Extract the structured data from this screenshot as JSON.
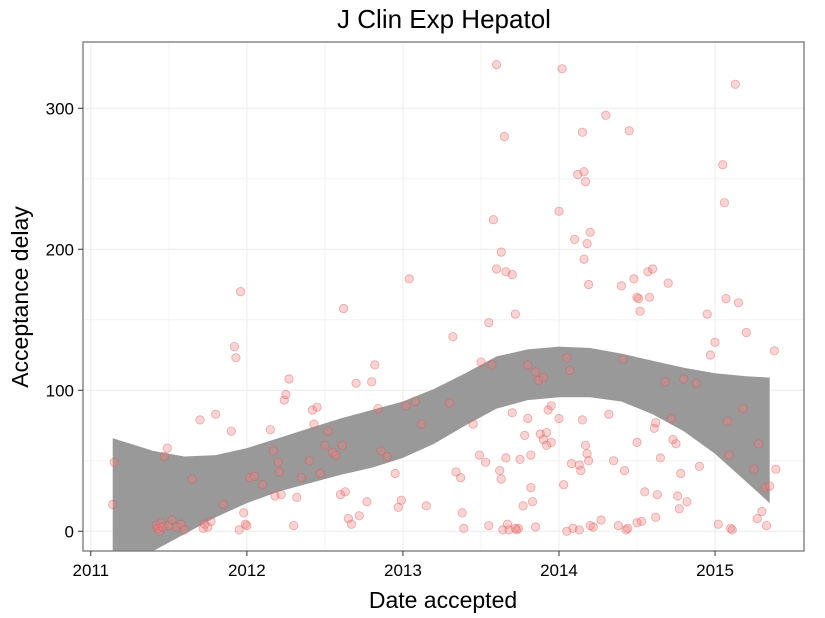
{
  "chart_data": {
    "type": "scatter",
    "title": "J Clin Exp Hepatol",
    "xlabel": "Date accepted",
    "ylabel": "Acceptance delay",
    "xlim": [
      2010.95,
      2015.57
    ],
    "ylim": [
      -14,
      347
    ],
    "x_ticks": [
      2011,
      2012,
      2013,
      2014,
      2015
    ],
    "x_tick_labels": [
      "2011",
      "2012",
      "2013",
      "2014",
      "2015"
    ],
    "y_ticks": [
      0,
      100,
      200,
      300
    ],
    "y_tick_labels": [
      "0",
      "100",
      "200",
      "300"
    ],
    "grid": true,
    "point_color": "#f08080",
    "band_color": "#999999",
    "smooth_band": {
      "x": [
        2011.14,
        2011.4,
        2011.6,
        2011.8,
        2012.0,
        2012.2,
        2012.4,
        2012.6,
        2012.8,
        2013.0,
        2013.2,
        2013.4,
        2013.6,
        2013.8,
        2014.0,
        2014.2,
        2014.4,
        2014.6,
        2014.8,
        2015.0,
        2015.2,
        2015.35
      ],
      "upper": [
        66,
        57,
        53,
        54,
        59,
        66,
        73,
        80,
        86,
        92,
        101,
        112,
        124,
        129,
        131,
        130,
        126,
        121,
        116,
        112,
        110,
        109
      ],
      "lower": [
        -14,
        -14,
        -2,
        10,
        20,
        28,
        34,
        40,
        45,
        52,
        62,
        75,
        87,
        93,
        95,
        95,
        92,
        83,
        71,
        55,
        35,
        20
      ]
    },
    "points": [
      {
        "x": 2011.14,
        "y": 19
      },
      {
        "x": 2011.15,
        "y": 49
      },
      {
        "x": 2011.42,
        "y": 4
      },
      {
        "x": 2011.43,
        "y": 2
      },
      {
        "x": 2011.44,
        "y": 0
      },
      {
        "x": 2011.45,
        "y": 6
      },
      {
        "x": 2011.46,
        "y": 3
      },
      {
        "x": 2011.47,
        "y": 53
      },
      {
        "x": 2011.49,
        "y": 59
      },
      {
        "x": 2011.5,
        "y": 4
      },
      {
        "x": 2011.52,
        "y": 8
      },
      {
        "x": 2011.55,
        "y": 3
      },
      {
        "x": 2011.58,
        "y": 5
      },
      {
        "x": 2011.6,
        "y": 1
      },
      {
        "x": 2011.65,
        "y": 37
      },
      {
        "x": 2011.7,
        "y": 79
      },
      {
        "x": 2011.72,
        "y": 2
      },
      {
        "x": 2011.73,
        "y": 5
      },
      {
        "x": 2011.75,
        "y": 3
      },
      {
        "x": 2011.77,
        "y": 7
      },
      {
        "x": 2011.8,
        "y": 83
      },
      {
        "x": 2011.85,
        "y": 19
      },
      {
        "x": 2011.9,
        "y": 71
      },
      {
        "x": 2011.92,
        "y": 131
      },
      {
        "x": 2011.93,
        "y": 123
      },
      {
        "x": 2011.95,
        "y": 1
      },
      {
        "x": 2011.96,
        "y": 170
      },
      {
        "x": 2011.98,
        "y": 13
      },
      {
        "x": 2011.99,
        "y": 5
      },
      {
        "x": 2012.0,
        "y": 4
      },
      {
        "x": 2012.02,
        "y": 38
      },
      {
        "x": 2012.05,
        "y": 39
      },
      {
        "x": 2012.1,
        "y": 33
      },
      {
        "x": 2012.15,
        "y": 72
      },
      {
        "x": 2012.17,
        "y": 57
      },
      {
        "x": 2012.18,
        "y": 25
      },
      {
        "x": 2012.2,
        "y": 49
      },
      {
        "x": 2012.21,
        "y": 42
      },
      {
        "x": 2012.22,
        "y": 26
      },
      {
        "x": 2012.24,
        "y": 93
      },
      {
        "x": 2012.25,
        "y": 97
      },
      {
        "x": 2012.27,
        "y": 108
      },
      {
        "x": 2012.3,
        "y": 4
      },
      {
        "x": 2012.32,
        "y": 24
      },
      {
        "x": 2012.35,
        "y": 38
      },
      {
        "x": 2012.4,
        "y": 50
      },
      {
        "x": 2012.42,
        "y": 86
      },
      {
        "x": 2012.43,
        "y": 76
      },
      {
        "x": 2012.45,
        "y": 88
      },
      {
        "x": 2012.47,
        "y": 41
      },
      {
        "x": 2012.5,
        "y": 61
      },
      {
        "x": 2012.52,
        "y": 71
      },
      {
        "x": 2012.55,
        "y": 56
      },
      {
        "x": 2012.57,
        "y": 54
      },
      {
        "x": 2012.6,
        "y": 26
      },
      {
        "x": 2012.61,
        "y": 61
      },
      {
        "x": 2012.62,
        "y": 158
      },
      {
        "x": 2012.63,
        "y": 28
      },
      {
        "x": 2012.65,
        "y": 9
      },
      {
        "x": 2012.67,
        "y": 5
      },
      {
        "x": 2012.7,
        "y": 105
      },
      {
        "x": 2012.72,
        "y": 11
      },
      {
        "x": 2012.77,
        "y": 21
      },
      {
        "x": 2012.8,
        "y": 106
      },
      {
        "x": 2012.82,
        "y": 118
      },
      {
        "x": 2012.84,
        "y": 87
      },
      {
        "x": 2012.86,
        "y": 57
      },
      {
        "x": 2012.9,
        "y": 53
      },
      {
        "x": 2012.95,
        "y": 41
      },
      {
        "x": 2012.97,
        "y": 17
      },
      {
        "x": 2012.99,
        "y": 22
      },
      {
        "x": 2013.02,
        "y": 89
      },
      {
        "x": 2013.04,
        "y": 179
      },
      {
        "x": 2013.08,
        "y": 92
      },
      {
        "x": 2013.12,
        "y": 76
      },
      {
        "x": 2013.15,
        "y": 18
      },
      {
        "x": 2013.3,
        "y": 91
      },
      {
        "x": 2013.32,
        "y": 138
      },
      {
        "x": 2013.34,
        "y": 42
      },
      {
        "x": 2013.37,
        "y": 38
      },
      {
        "x": 2013.38,
        "y": 13
      },
      {
        "x": 2013.39,
        "y": 2
      },
      {
        "x": 2013.45,
        "y": 76
      },
      {
        "x": 2013.5,
        "y": 120
      },
      {
        "x": 2013.55,
        "y": 4
      },
      {
        "x": 2013.6,
        "y": 186
      },
      {
        "x": 2013.63,
        "y": 37
      },
      {
        "x": 2013.66,
        "y": 52
      },
      {
        "x": 2013.7,
        "y": 182
      },
      {
        "x": 2013.72,
        "y": 154
      },
      {
        "x": 2013.73,
        "y": 1
      },
      {
        "x": 2013.74,
        "y": 2
      },
      {
        "x": 2013.75,
        "y": 51
      },
      {
        "x": 2013.77,
        "y": 18
      },
      {
        "x": 2013.78,
        "y": 68
      },
      {
        "x": 2013.8,
        "y": 80
      },
      {
        "x": 2013.82,
        "y": 54
      },
      {
        "x": 2013.85,
        "y": 113
      },
      {
        "x": 2013.87,
        "y": 107
      },
      {
        "x": 2013.88,
        "y": 69
      },
      {
        "x": 2013.9,
        "y": 109
      },
      {
        "x": 2013.92,
        "y": 70
      },
      {
        "x": 2013.93,
        "y": 86
      },
      {
        "x": 2013.95,
        "y": 63
      },
      {
        "x": 2013.58,
        "y": 221
      },
      {
        "x": 2013.6,
        "y": 331
      },
      {
        "x": 2013.63,
        "y": 198
      },
      {
        "x": 2013.65,
        "y": 280
      },
      {
        "x": 2013.66,
        "y": 184
      },
      {
        "x": 2013.67,
        "y": 5
      },
      {
        "x": 2013.7,
        "y": 84
      },
      {
        "x": 2013.72,
        "y": 2
      },
      {
        "x": 2013.62,
        "y": 43
      },
      {
        "x": 2013.64,
        "y": 1
      },
      {
        "x": 2013.68,
        "y": 1
      },
      {
        "x": 2013.55,
        "y": 148
      },
      {
        "x": 2013.57,
        "y": 118
      },
      {
        "x": 2013.53,
        "y": 49
      },
      {
        "x": 2013.49,
        "y": 54
      },
      {
        "x": 2013.8,
        "y": 118
      },
      {
        "x": 2013.82,
        "y": 31
      },
      {
        "x": 2013.83,
        "y": 21
      },
      {
        "x": 2013.85,
        "y": 3
      },
      {
        "x": 2013.9,
        "y": 65
      },
      {
        "x": 2013.92,
        "y": 61
      },
      {
        "x": 2013.95,
        "y": 89
      },
      {
        "x": 2014.0,
        "y": 227
      },
      {
        "x": 2014.02,
        "y": 328
      },
      {
        "x": 2014.0,
        "y": 80
      },
      {
        "x": 2014.03,
        "y": 33
      },
      {
        "x": 2014.05,
        "y": 123
      },
      {
        "x": 2014.07,
        "y": 114
      },
      {
        "x": 2014.08,
        "y": 48
      },
      {
        "x": 2014.09,
        "y": 2
      },
      {
        "x": 2014.1,
        "y": 207
      },
      {
        "x": 2014.12,
        "y": 253
      },
      {
        "x": 2014.13,
        "y": 47
      },
      {
        "x": 2014.15,
        "y": 283
      },
      {
        "x": 2014.16,
        "y": 255
      },
      {
        "x": 2014.17,
        "y": 248
      },
      {
        "x": 2014.18,
        "y": 204
      },
      {
        "x": 2014.19,
        "y": 175
      },
      {
        "x": 2014.2,
        "y": 212
      },
      {
        "x": 2014.22,
        "y": 3
      },
      {
        "x": 2014.16,
        "y": 193
      },
      {
        "x": 2014.14,
        "y": 43
      },
      {
        "x": 2014.15,
        "y": 79
      },
      {
        "x": 2014.17,
        "y": 61
      },
      {
        "x": 2014.18,
        "y": 55
      },
      {
        "x": 2014.19,
        "y": 50
      },
      {
        "x": 2014.13,
        "y": 1
      },
      {
        "x": 2014.3,
        "y": 295
      },
      {
        "x": 2014.32,
        "y": 83
      },
      {
        "x": 2014.35,
        "y": 50
      },
      {
        "x": 2014.38,
        "y": 4
      },
      {
        "x": 2014.4,
        "y": 174
      },
      {
        "x": 2014.41,
        "y": 122
      },
      {
        "x": 2014.42,
        "y": 43
      },
      {
        "x": 2014.43,
        "y": 1
      },
      {
        "x": 2014.44,
        "y": 2
      },
      {
        "x": 2014.45,
        "y": 284
      },
      {
        "x": 2014.48,
        "y": 179
      },
      {
        "x": 2014.5,
        "y": 166
      },
      {
        "x": 2014.51,
        "y": 165
      },
      {
        "x": 2014.52,
        "y": 156
      },
      {
        "x": 2014.53,
        "y": 7
      },
      {
        "x": 2014.5,
        "y": 63
      },
      {
        "x": 2014.55,
        "y": 28
      },
      {
        "x": 2014.57,
        "y": 184
      },
      {
        "x": 2014.58,
        "y": 166
      },
      {
        "x": 2014.6,
        "y": 186
      },
      {
        "x": 2014.61,
        "y": 73
      },
      {
        "x": 2014.62,
        "y": 77
      },
      {
        "x": 2014.63,
        "y": 26
      },
      {
        "x": 2014.65,
        "y": 52
      },
      {
        "x": 2014.68,
        "y": 106
      },
      {
        "x": 2014.7,
        "y": 176
      },
      {
        "x": 2014.72,
        "y": 80
      },
      {
        "x": 2014.73,
        "y": 65
      },
      {
        "x": 2014.75,
        "y": 62
      },
      {
        "x": 2014.76,
        "y": 25
      },
      {
        "x": 2014.77,
        "y": 16
      },
      {
        "x": 2014.78,
        "y": 41
      },
      {
        "x": 2014.8,
        "y": 108
      },
      {
        "x": 2014.82,
        "y": 21
      },
      {
        "x": 2014.88,
        "y": 105
      },
      {
        "x": 2014.9,
        "y": 46
      },
      {
        "x": 2014.95,
        "y": 154
      },
      {
        "x": 2014.97,
        "y": 125
      },
      {
        "x": 2015.0,
        "y": 134
      },
      {
        "x": 2015.02,
        "y": 5
      },
      {
        "x": 2015.05,
        "y": 260
      },
      {
        "x": 2015.06,
        "y": 233
      },
      {
        "x": 2015.07,
        "y": 165
      },
      {
        "x": 2015.08,
        "y": 78
      },
      {
        "x": 2015.09,
        "y": 54
      },
      {
        "x": 2015.1,
        "y": 2
      },
      {
        "x": 2015.11,
        "y": 1
      },
      {
        "x": 2015.13,
        "y": 317
      },
      {
        "x": 2015.15,
        "y": 162
      },
      {
        "x": 2015.18,
        "y": 87
      },
      {
        "x": 2015.2,
        "y": 141
      },
      {
        "x": 2015.25,
        "y": 44
      },
      {
        "x": 2015.27,
        "y": 9
      },
      {
        "x": 2015.28,
        "y": 62
      },
      {
        "x": 2015.3,
        "y": 14
      },
      {
        "x": 2015.32,
        "y": 31
      },
      {
        "x": 2015.33,
        "y": 4
      },
      {
        "x": 2015.35,
        "y": 32
      },
      {
        "x": 2015.38,
        "y": 128
      },
      {
        "x": 2015.39,
        "y": 44
      },
      {
        "x": 2014.05,
        "y": 0
      },
      {
        "x": 2014.2,
        "y": 4
      },
      {
        "x": 2014.27,
        "y": 8
      },
      {
        "x": 2014.5,
        "y": 6
      },
      {
        "x": 2014.62,
        "y": 10
      }
    ]
  }
}
